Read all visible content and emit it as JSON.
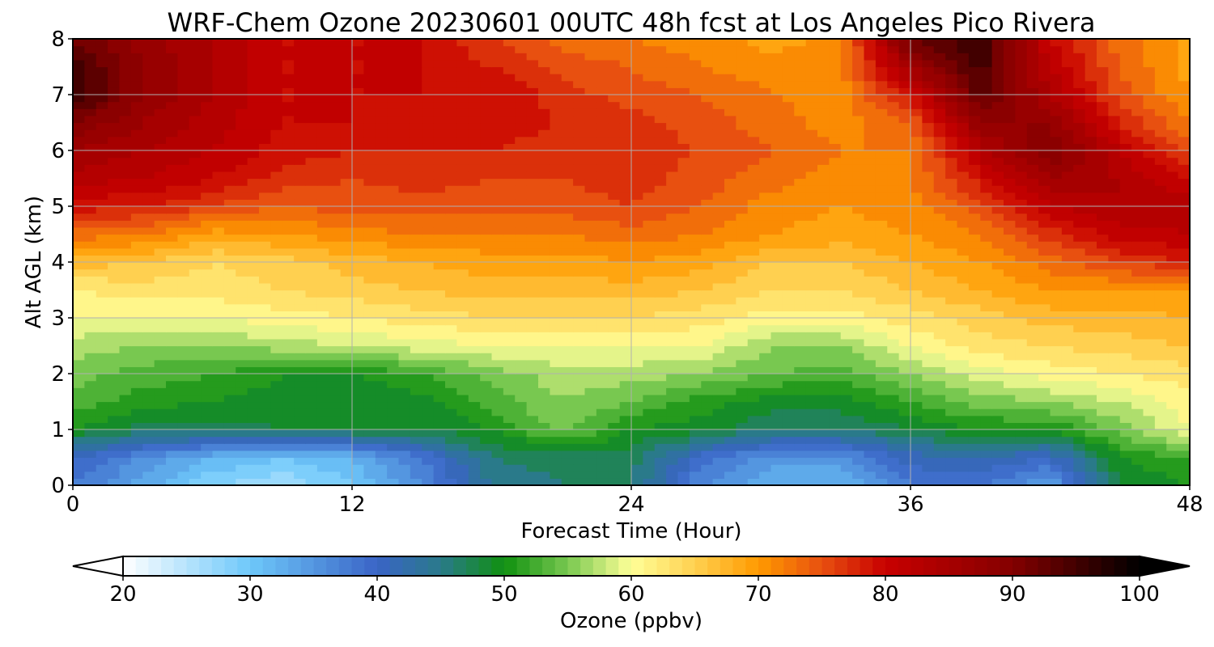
{
  "chart_data": {
    "type": "heatmap",
    "title": "WRF-Chem Ozone  20230601 00UTC 48h fcst at Los Angeles Pico Rivera",
    "xlabel": "Forecast Time (Hour)",
    "ylabel": "Alt AGL (km)",
    "xlim": [
      0,
      48
    ],
    "ylim": [
      0,
      8
    ],
    "x_ticks": [
      0,
      12,
      24,
      36,
      48
    ],
    "y_ticks": [
      0,
      1,
      2,
      3,
      4,
      5,
      6,
      7,
      8
    ],
    "grid": true,
    "x": [
      0,
      3,
      6,
      9,
      12,
      15,
      18,
      21,
      24,
      27,
      30,
      33,
      36,
      39,
      42,
      45,
      48
    ],
    "y": [
      0,
      0.5,
      1,
      1.5,
      2,
      2.5,
      3,
      3.5,
      4,
      4.5,
      5,
      5.5,
      6,
      6.5,
      7,
      7.5,
      8
    ],
    "z": [
      [
        38,
        33,
        28,
        26,
        30,
        36,
        44,
        46,
        46,
        36,
        32,
        32,
        38,
        38,
        34,
        48,
        50
      ],
      [
        40,
        36,
        32,
        30,
        32,
        38,
        46,
        47,
        47,
        39,
        35,
        35,
        41,
        42,
        40,
        50,
        52
      ],
      [
        50,
        47,
        47,
        48,
        48,
        48,
        50,
        55,
        50,
        49,
        46,
        46,
        48,
        50,
        50,
        55,
        60
      ],
      [
        53,
        51,
        50,
        49,
        48,
        49,
        53,
        56,
        54,
        51,
        49,
        49,
        52,
        55,
        56,
        58,
        61
      ],
      [
        55,
        53,
        52,
        50,
        50,
        52,
        55,
        57,
        57,
        56,
        54,
        53,
        56,
        59,
        61,
        62,
        63
      ],
      [
        57,
        56,
        56,
        57,
        58,
        59,
        60,
        60,
        60,
        60,
        56,
        56,
        60,
        63,
        64,
        65,
        66
      ],
      [
        60,
        60,
        60,
        61,
        62,
        63,
        64,
        64,
        64,
        63,
        61,
        61,
        63,
        65,
        67,
        67,
        68
      ],
      [
        62,
        63,
        63,
        64,
        65,
        66,
        67,
        67,
        67,
        66,
        64,
        64,
        66,
        68,
        70,
        70,
        70
      ],
      [
        67,
        66,
        64,
        65,
        67,
        68,
        69,
        69,
        70,
        69,
        66,
        66,
        68,
        70,
        73,
        76,
        78
      ],
      [
        73,
        72,
        69,
        70,
        71,
        72,
        72,
        72,
        73,
        72,
        70,
        69,
        70,
        72,
        77,
        81,
        82
      ],
      [
        79,
        78,
        76,
        74,
        75,
        75,
        75,
        75,
        76,
        74,
        71,
        70,
        71,
        75,
        82,
        84,
        83
      ],
      [
        83,
        82,
        80,
        77,
        76,
        77,
        76,
        76,
        77,
        75,
        73,
        71,
        72,
        79,
        86,
        84,
        80
      ],
      [
        86,
        84,
        82,
        79,
        78,
        78,
        78,
        77,
        77,
        76,
        74,
        72,
        72,
        83,
        90,
        82,
        75
      ],
      [
        90,
        86,
        83,
        80,
        80,
        79,
        79,
        78,
        77,
        75,
        73,
        71,
        74,
        88,
        88,
        78,
        72
      ],
      [
        96,
        88,
        84,
        80,
        80,
        80,
        80,
        77,
        75,
        74,
        72,
        71,
        79,
        93,
        84,
        75,
        70
      ],
      [
        95,
        88,
        84,
        80,
        80,
        80,
        78,
        75,
        74,
        72,
        71,
        71,
        86,
        95,
        82,
        74,
        69
      ],
      [
        92,
        87,
        84,
        80,
        80,
        80,
        76,
        73,
        72,
        71,
        69,
        71,
        92,
        96,
        80,
        73,
        69
      ]
    ],
    "colorbar": {
      "label": "Ozone  (ppbv)",
      "min": 20,
      "max": 100,
      "ticks": [
        20,
        30,
        40,
        50,
        60,
        70,
        80,
        90,
        100
      ],
      "extend": "both",
      "colors": [
        [
          20,
          "#ffffff"
        ],
        [
          30,
          "#6ec8fa"
        ],
        [
          40,
          "#3a64c6"
        ],
        [
          45,
          "#2a7a8a"
        ],
        [
          50,
          "#109010"
        ],
        [
          55,
          "#78c850"
        ],
        [
          60,
          "#ffff98"
        ],
        [
          65,
          "#ffd050"
        ],
        [
          70,
          "#ff9a00"
        ],
        [
          75,
          "#e85010"
        ],
        [
          80,
          "#c80000"
        ],
        [
          90,
          "#840000"
        ],
        [
          100,
          "#000000"
        ]
      ]
    }
  }
}
